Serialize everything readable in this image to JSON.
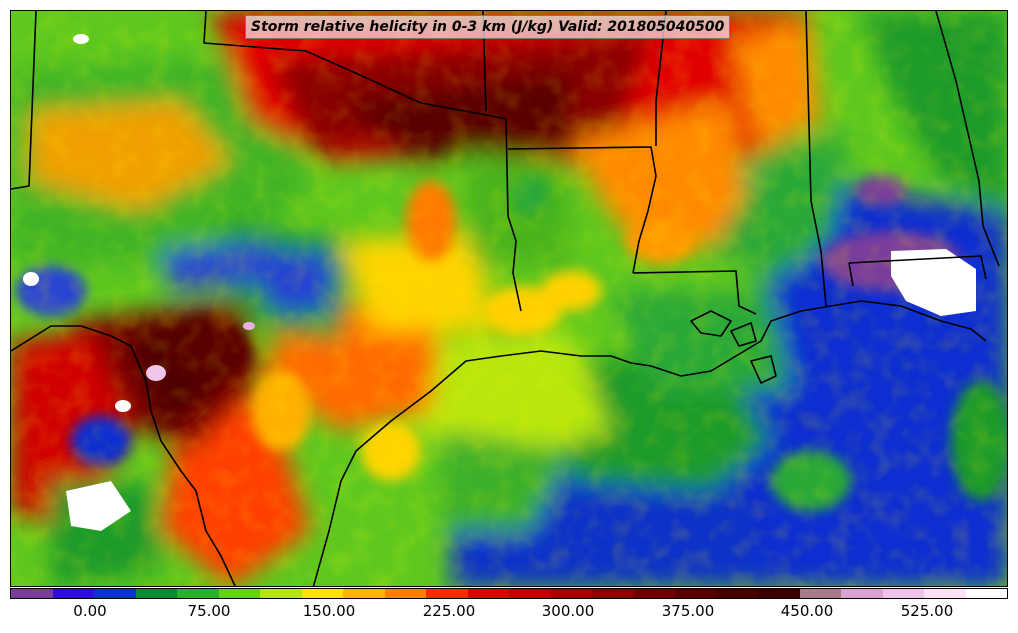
{
  "map": {
    "title": "Storm relative helicity in 0-3 km (J/kg) Valid: 201805040500"
  },
  "colorbar": {
    "colors": [
      "#7a3c9b",
      "#2d0fd6",
      "#0b35c2",
      "#0a8a32",
      "#2bb02b",
      "#62d21a",
      "#b5e60c",
      "#fee200",
      "#ffb400",
      "#ff7f00",
      "#ff2a00",
      "#df0000",
      "#c00000",
      "#a50000",
      "#8c0000",
      "#700000",
      "#580000",
      "#460000",
      "#3a0000",
      "#a87a8c",
      "#d9a2d0",
      "#efc2ec",
      "#fbe2f7",
      "#ffffff"
    ],
    "tick_labels": [
      "0.00",
      "75.00",
      "150.00",
      "225.00",
      "300.00",
      "375.00",
      "450.00",
      "525.00"
    ]
  }
}
